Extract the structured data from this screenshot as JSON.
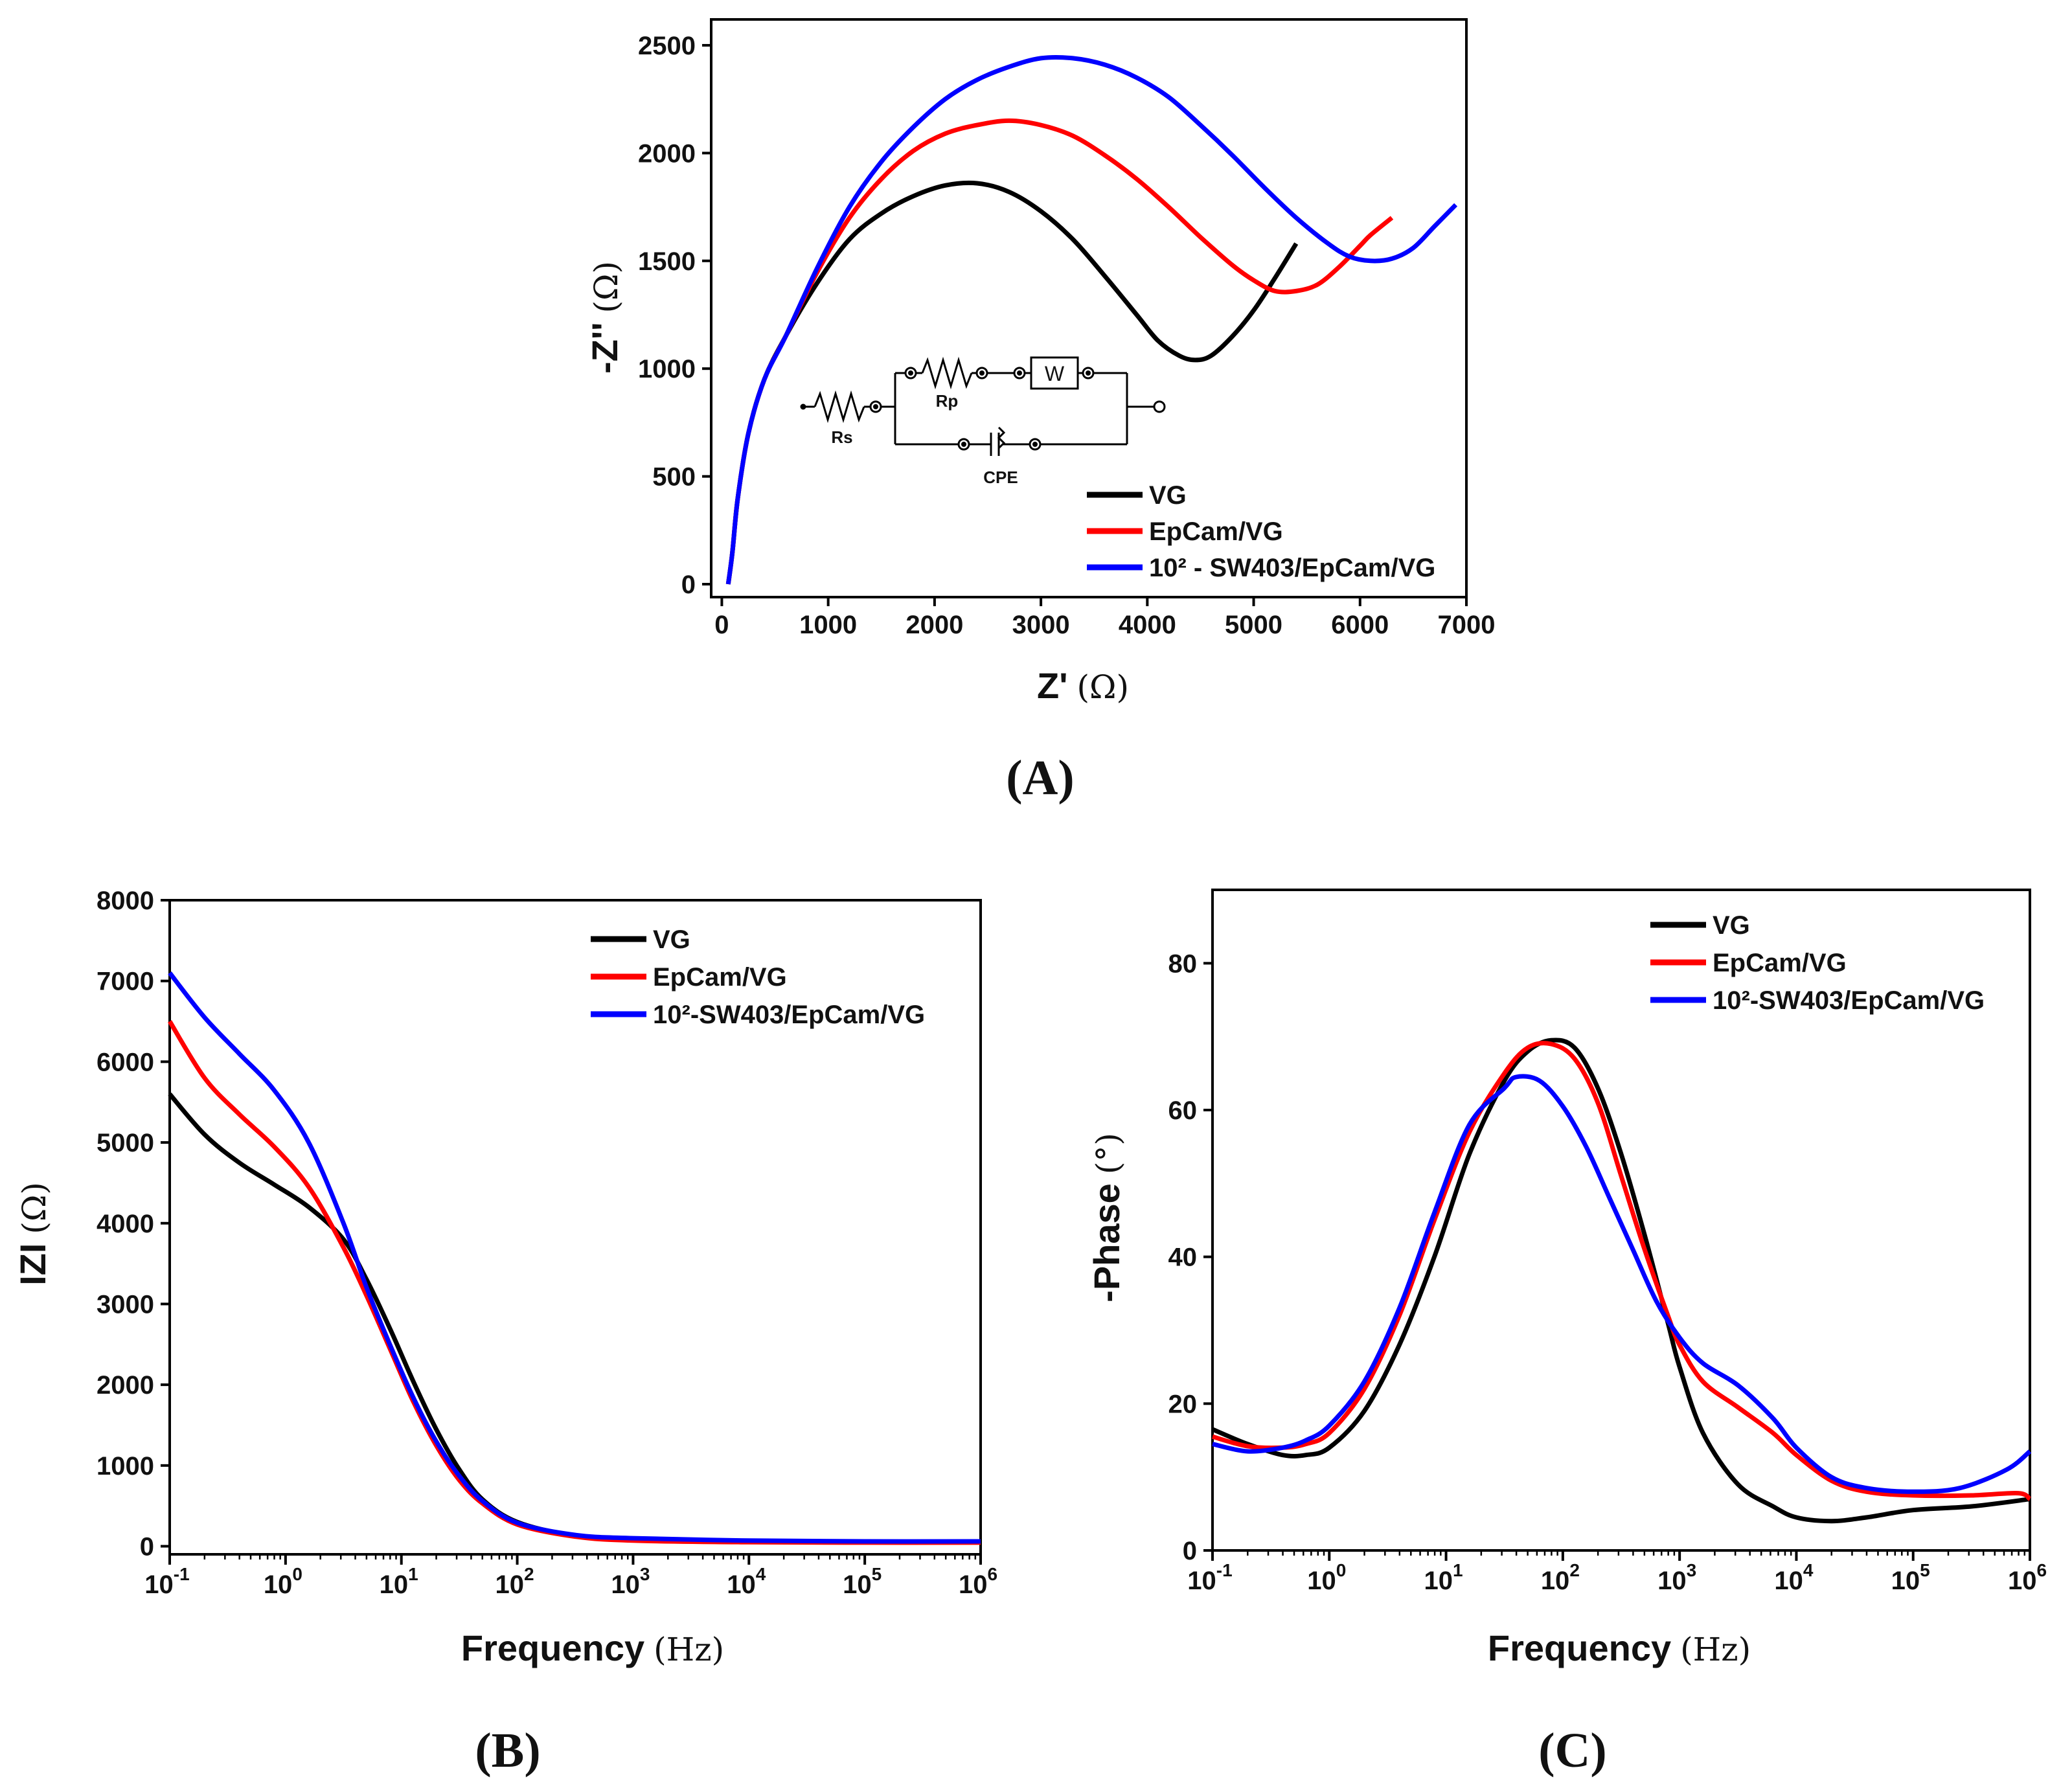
{
  "series_meta": [
    {
      "name": "VG",
      "color": "#000000"
    },
    {
      "name": "EpCam/VG",
      "color": "#ff0000"
    },
    {
      "name": "10²-SW403/EpCam/VG",
      "color": "#0000ff"
    }
  ],
  "chart_data": [
    {
      "panel": "(A)",
      "type": "line",
      "xlabel": "Z'",
      "xunit": "(Ω)",
      "ylabel": "-Z''",
      "yunit": "(Ω)",
      "xlim": [
        -100,
        7000
      ],
      "ylim": [
        -60,
        2620
      ],
      "xticks": [
        0,
        1000,
        2000,
        3000,
        4000,
        5000,
        6000,
        7000
      ],
      "yticks": [
        0,
        500,
        1000,
        1500,
        2000,
        2500
      ],
      "legend": [
        "VG",
        "EpCam/VG",
        "10² - SW403/EpCam/VG"
      ],
      "legend_position": "bottom-right",
      "inset_circuit": {
        "labels": [
          "Rs",
          "Rp",
          "W",
          "CPE"
        ]
      },
      "series": [
        {
          "name": "VG",
          "x": [
            60,
            100,
            150,
            250,
            400,
            600,
            900,
            1200,
            1500,
            1800,
            2100,
            2400,
            2700,
            3000,
            3300,
            3600,
            3900,
            4100,
            4300,
            4450,
            4600,
            4800,
            5000,
            5200,
            5400
          ],
          "y": [
            0,
            150,
            400,
            700,
            950,
            1150,
            1400,
            1600,
            1720,
            1800,
            1850,
            1860,
            1820,
            1730,
            1600,
            1430,
            1250,
            1130,
            1060,
            1040,
            1060,
            1150,
            1270,
            1420,
            1580
          ]
        },
        {
          "name": "EpCam/VG",
          "x": [
            60,
            100,
            150,
            250,
            400,
            600,
            900,
            1200,
            1500,
            1800,
            2100,
            2400,
            2700,
            3000,
            3300,
            3600,
            3900,
            4200,
            4500,
            4800,
            5000,
            5200,
            5400,
            5600,
            5800,
            6000,
            6100,
            6300
          ],
          "y": [
            0,
            150,
            400,
            700,
            950,
            1150,
            1450,
            1700,
            1880,
            2010,
            2090,
            2130,
            2150,
            2130,
            2080,
            1990,
            1880,
            1750,
            1610,
            1480,
            1410,
            1360,
            1360,
            1390,
            1470,
            1570,
            1620,
            1700
          ]
        },
        {
          "name": "10²-SW403/EpCam/VG",
          "x": [
            60,
            100,
            150,
            250,
            400,
            600,
            900,
            1200,
            1500,
            1800,
            2100,
            2400,
            2700,
            3000,
            3300,
            3600,
            3900,
            4200,
            4500,
            4800,
            5100,
            5400,
            5700,
            5900,
            6100,
            6300,
            6500,
            6700,
            6900
          ],
          "y": [
            0,
            150,
            400,
            700,
            950,
            1150,
            1470,
            1750,
            1960,
            2120,
            2250,
            2340,
            2400,
            2440,
            2440,
            2410,
            2350,
            2260,
            2130,
            1990,
            1840,
            1700,
            1580,
            1520,
            1500,
            1510,
            1560,
            1660,
            1760
          ]
        }
      ]
    },
    {
      "panel": "(B)",
      "type": "line",
      "xlabel": "Frequency",
      "xunit": "(Hz)",
      "ylabel": "IZI",
      "yunit": "(Ω)",
      "xscale": "log",
      "xlim": [
        0.1,
        1000000
      ],
      "ylim": [
        -100,
        8000
      ],
      "xticks_exp": [
        -1,
        0,
        1,
        2,
        3,
        4,
        5,
        6
      ],
      "yticks": [
        0,
        1000,
        2000,
        3000,
        4000,
        5000,
        6000,
        7000,
        8000
      ],
      "legend": [
        "VG",
        "EpCam/VG",
        "10²-SW403/EpCam/VG"
      ],
      "legend_position": "top-right",
      "series": [
        {
          "name": "VG",
          "logf": [
            -1,
            -0.7,
            -0.4,
            -0.1,
            0.2,
            0.5,
            0.7,
            0.9,
            1.1,
            1.3,
            1.5,
            1.7,
            2.0,
            2.5,
            3.0,
            4.0,
            5.0,
            6.0
          ],
          "y": [
            5600,
            5100,
            4750,
            4480,
            4200,
            3800,
            3300,
            2700,
            2050,
            1450,
            950,
            580,
            300,
            130,
            80,
            55,
            50,
            50
          ]
        },
        {
          "name": "EpCam/VG",
          "logf": [
            -1,
            -0.7,
            -0.4,
            -0.1,
            0.2,
            0.5,
            0.7,
            0.9,
            1.1,
            1.3,
            1.5,
            1.7,
            2.0,
            2.5,
            3.0,
            4.0,
            5.0,
            6.0
          ],
          "y": [
            6500,
            5800,
            5350,
            4950,
            4450,
            3700,
            3100,
            2450,
            1800,
            1250,
            820,
            530,
            270,
            120,
            70,
            50,
            45,
            45
          ]
        },
        {
          "name": "10²-SW403/EpCam/VG",
          "logf": [
            -1,
            -0.7,
            -0.4,
            -0.1,
            0.2,
            0.5,
            0.7,
            0.9,
            1.1,
            1.3,
            1.5,
            1.7,
            2.0,
            2.5,
            3.0,
            4.0,
            5.0,
            6.0
          ],
          "y": [
            7100,
            6550,
            6100,
            5650,
            5000,
            4000,
            3200,
            2500,
            1850,
            1300,
            870,
            560,
            290,
            140,
            100,
            70,
            60,
            60
          ]
        }
      ]
    },
    {
      "panel": "(C)",
      "type": "line",
      "xlabel": "Frequency",
      "xunit": "(Hz)",
      "ylabel": "-Phase",
      "yunit": "(°)",
      "xscale": "log",
      "xlim": [
        0.1,
        1000000
      ],
      "ylim": [
        0,
        90
      ],
      "xticks_exp": [
        -1,
        0,
        1,
        2,
        3,
        4,
        5,
        6
      ],
      "yticks": [
        0,
        20,
        40,
        60,
        80
      ],
      "legend": [
        "VG",
        "EpCam/VG",
        "10²-SW403/EpCam/VG"
      ],
      "legend_position": "top-right",
      "series": [
        {
          "name": "VG",
          "logf": [
            -1,
            -0.7,
            -0.4,
            -0.2,
            0,
            0.3,
            0.6,
            0.9,
            1.2,
            1.5,
            1.7,
            1.9,
            2.1,
            2.3,
            2.5,
            2.7,
            2.9,
            3.0,
            3.2,
            3.5,
            3.8,
            4.0,
            4.3,
            4.6,
            5.0,
            5.5,
            6.0
          ],
          "y": [
            16.5,
            14.5,
            13,
            13,
            14,
            19,
            28,
            40,
            54,
            64,
            68,
            69.5,
            68.5,
            63,
            54,
            43,
            31,
            25,
            16,
            9,
            6,
            4.5,
            4,
            4.5,
            5.5,
            6,
            7
          ]
        },
        {
          "name": "EpCam/VG",
          "logf": [
            -1,
            -0.7,
            -0.4,
            -0.2,
            0,
            0.3,
            0.6,
            0.9,
            1.2,
            1.5,
            1.7,
            1.9,
            2.1,
            2.3,
            2.5,
            2.7,
            2.9,
            3.0,
            3.2,
            3.5,
            3.8,
            4.0,
            4.3,
            4.6,
            5.0,
            5.5,
            5.9,
            6.0
          ],
          "y": [
            15.5,
            14.2,
            14,
            14.5,
            16,
            22,
            32,
            45,
            57,
            65,
            68.5,
            69,
            67,
            61,
            51,
            41,
            32,
            28,
            23,
            19.5,
            16,
            13,
            9.5,
            8,
            7.5,
            7.5,
            7.8,
            7
          ]
        },
        {
          "name": "10²-SW403/EpCam/VG",
          "logf": [
            -1,
            -0.7,
            -0.4,
            -0.2,
            0,
            0.3,
            0.6,
            0.9,
            1.2,
            1.5,
            1.6,
            1.8,
            2.0,
            2.2,
            2.4,
            2.6,
            2.8,
            3.0,
            3.2,
            3.5,
            3.8,
            4.0,
            4.3,
            4.6,
            5.0,
            5.4,
            5.8,
            6.0
          ],
          "y": [
            14.5,
            13.5,
            14,
            15,
            17,
            23,
            33,
            46,
            58,
            63,
            64.5,
            64,
            60.5,
            55,
            48,
            41,
            34,
            29,
            25.5,
            22.5,
            18,
            14,
            10,
            8.5,
            8,
            8.5,
            11,
            13.5
          ]
        }
      ]
    }
  ]
}
